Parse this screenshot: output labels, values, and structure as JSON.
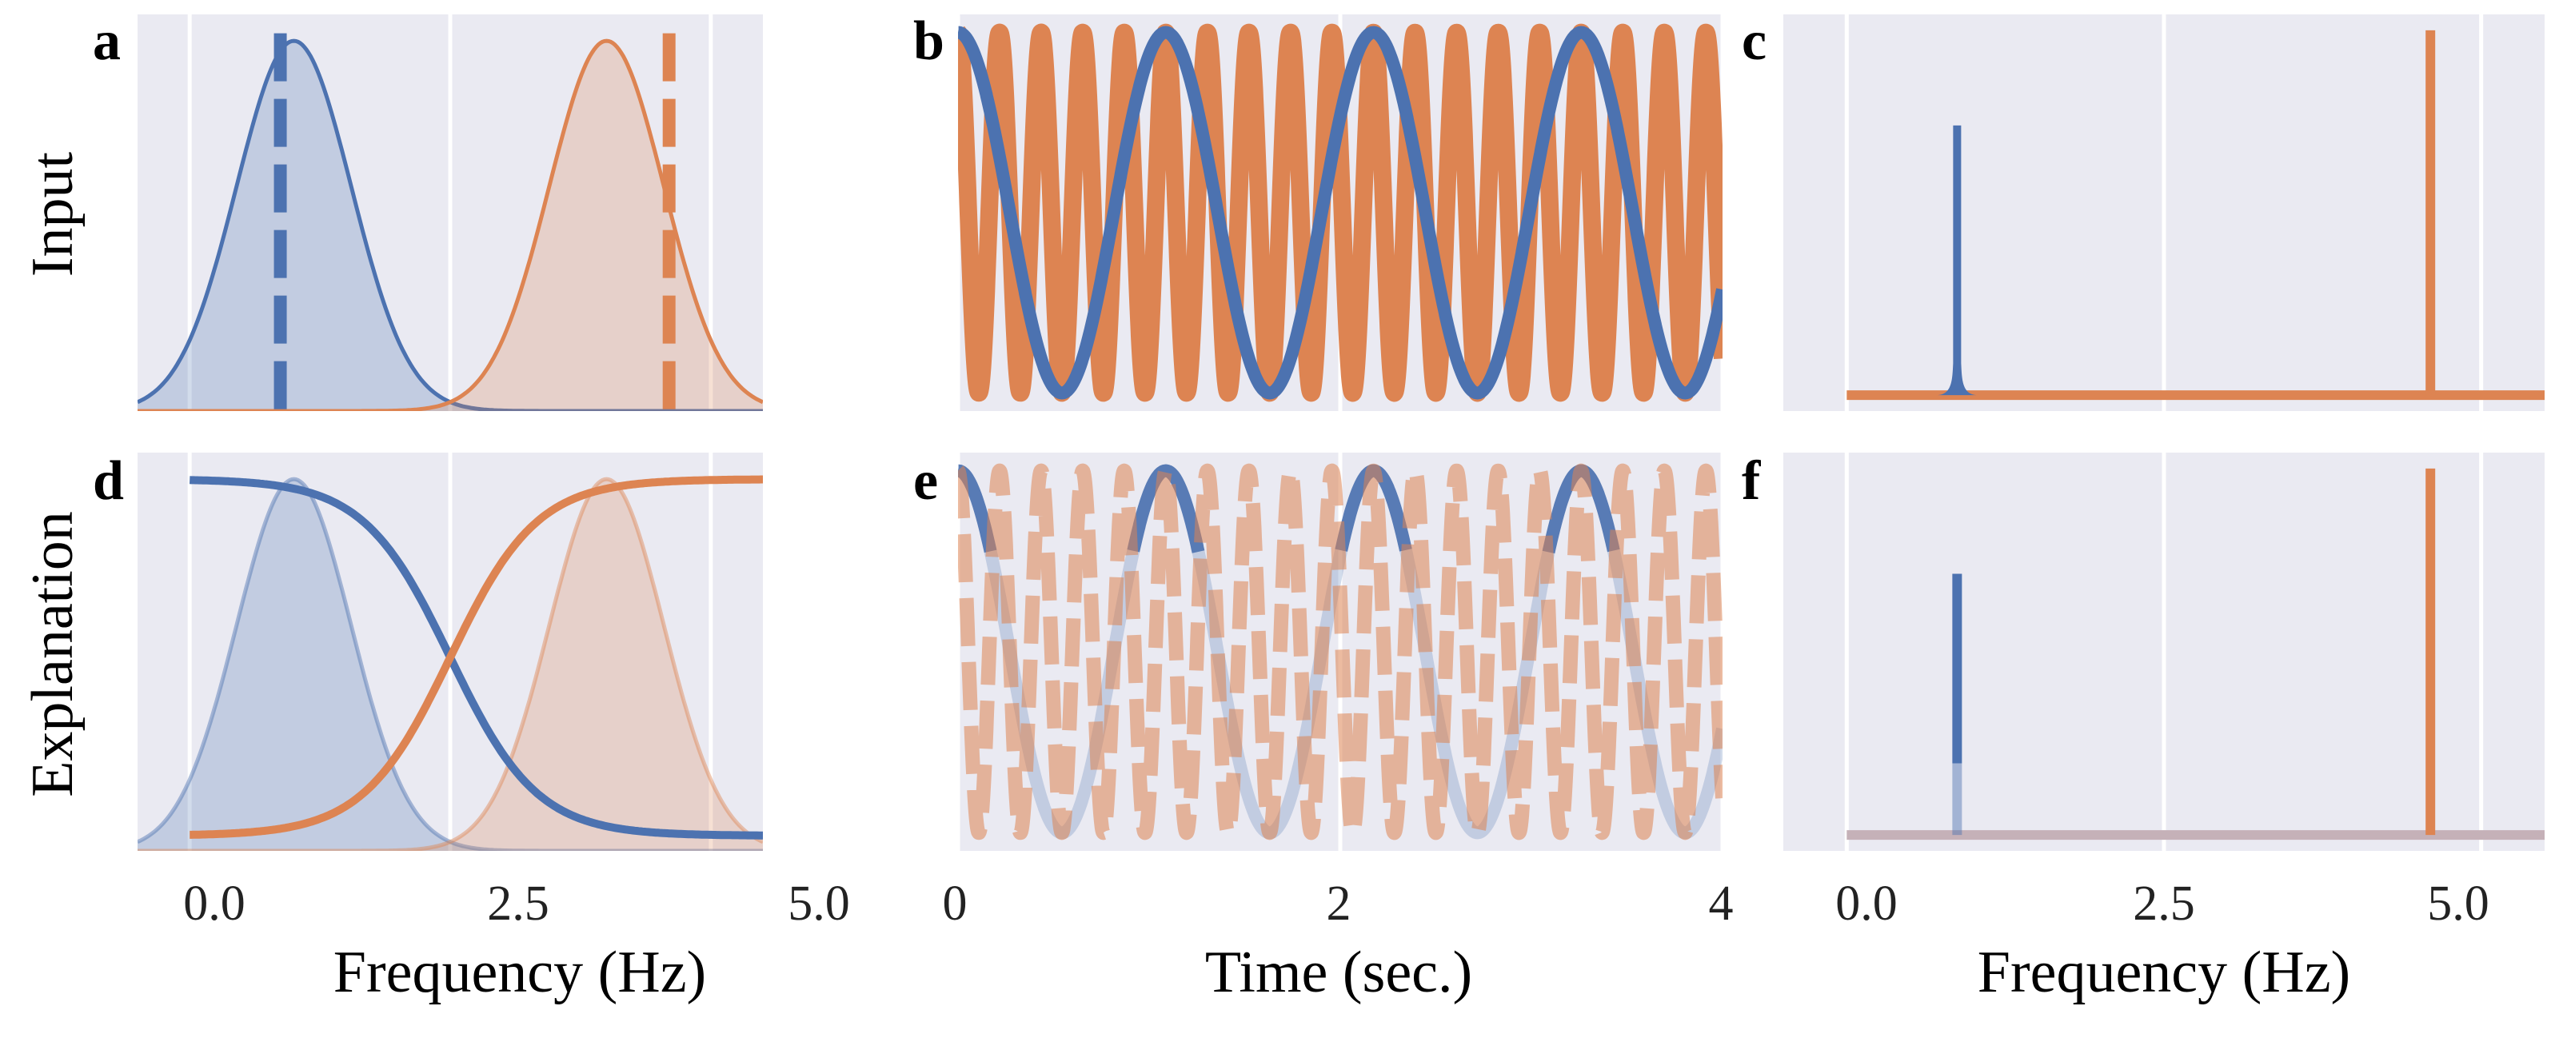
{
  "colors": {
    "blue": "#4c72b0",
    "orange": "#dd8452",
    "panel_bg": "#eaeaf2",
    "grid": "#ffffff"
  },
  "row_labels": {
    "top": "Input",
    "bottom": "Explanation"
  },
  "panel_letters": {
    "a": "a",
    "b": "b",
    "c": "c",
    "d": "d",
    "e": "e",
    "f": "f"
  },
  "axes": {
    "freq_xlabel": "Frequency (Hz)",
    "time_xlabel": "Time (sec.)",
    "freq_ticks": [
      "0.0",
      "2.5",
      "5.0"
    ],
    "time_ticks": [
      "0",
      "2",
      "4"
    ]
  },
  "chart_data": [
    {
      "panel": "a",
      "type": "area",
      "xlabel": "",
      "xlim": [
        -0.5,
        5.5
      ],
      "xticks": [
        0.0,
        2.5,
        5.0
      ],
      "ylim": [
        0,
        1.05
      ],
      "series": [
        {
          "color": "blue",
          "dist": {
            "mean": 1.0,
            "sd": 0.55
          }
        },
        {
          "color": "orange",
          "dist": {
            "mean": 4.0,
            "sd": 0.55
          }
        }
      ],
      "markers": [
        {
          "x": 0.87,
          "color": "blue"
        },
        {
          "x": 4.6,
          "color": "orange"
        }
      ]
    },
    {
      "panel": "b",
      "type": "line",
      "xlim": [
        0,
        4
      ],
      "xticks": [
        0,
        2,
        4
      ],
      "ylim": [
        -1.1,
        1.1
      ],
      "series": [
        {
          "color": "blue",
          "freq_hz": 0.92,
          "phase_deg": 90
        },
        {
          "color": "orange",
          "freq_hz": 4.6,
          "phase_deg": 90
        }
      ]
    },
    {
      "panel": "c",
      "type": "line",
      "xlim": [
        -0.5,
        5.5
      ],
      "xticks": [
        0.0,
        2.5,
        5.0
      ],
      "ylim": [
        0,
        1.0
      ],
      "series": [
        {
          "color": "blue",
          "peak_x": 0.87,
          "peak_y": 0.72
        },
        {
          "color": "orange",
          "peak_x": 4.6,
          "peak_y": 0.96
        }
      ]
    },
    {
      "panel": "d",
      "type": "line",
      "xlabel": "Frequency (Hz)",
      "xlim": [
        -0.5,
        5.5
      ],
      "xticks": [
        0.0,
        2.5,
        5.0
      ],
      "ylim": [
        0,
        1.05
      ],
      "series": [
        {
          "color": "blue",
          "sigmoid": {
            "center": 2.5,
            "direction": "decreasing",
            "low": 0.04,
            "high": 0.98
          }
        },
        {
          "color": "orange",
          "sigmoid": {
            "center": 2.5,
            "direction": "increasing",
            "low": 0.04,
            "high": 0.98
          }
        }
      ],
      "background_density": [
        {
          "color": "blue",
          "dist": {
            "mean": 1.0,
            "sd": 0.55
          }
        },
        {
          "color": "orange",
          "dist": {
            "mean": 4.0,
            "sd": 0.55
          }
        }
      ]
    },
    {
      "panel": "e",
      "type": "line",
      "xlabel": "Time (sec.)",
      "xlim": [
        0,
        4
      ],
      "xticks": [
        0,
        2,
        4
      ],
      "ylim": [
        -1.1,
        1.1
      ],
      "series": [
        {
          "color": "blue",
          "freq_hz": 0.92,
          "phase_deg": 90,
          "style": "faded-highlight"
        },
        {
          "color": "orange",
          "freq_hz": 4.6,
          "phase_deg": 90,
          "style": "dashed-faded"
        }
      ]
    },
    {
      "panel": "f",
      "type": "line",
      "xlabel": "Frequency (Hz)",
      "xlim": [
        -0.5,
        5.5
      ],
      "xticks": [
        0.0,
        2.5,
        5.0
      ],
      "ylim": [
        0,
        1.0
      ],
      "series": [
        {
          "color": "blue",
          "peak_x": 0.87,
          "peak_y": 0.72
        },
        {
          "color": "orange",
          "peak_x": 4.6,
          "peak_y": 0.96
        }
      ]
    }
  ]
}
